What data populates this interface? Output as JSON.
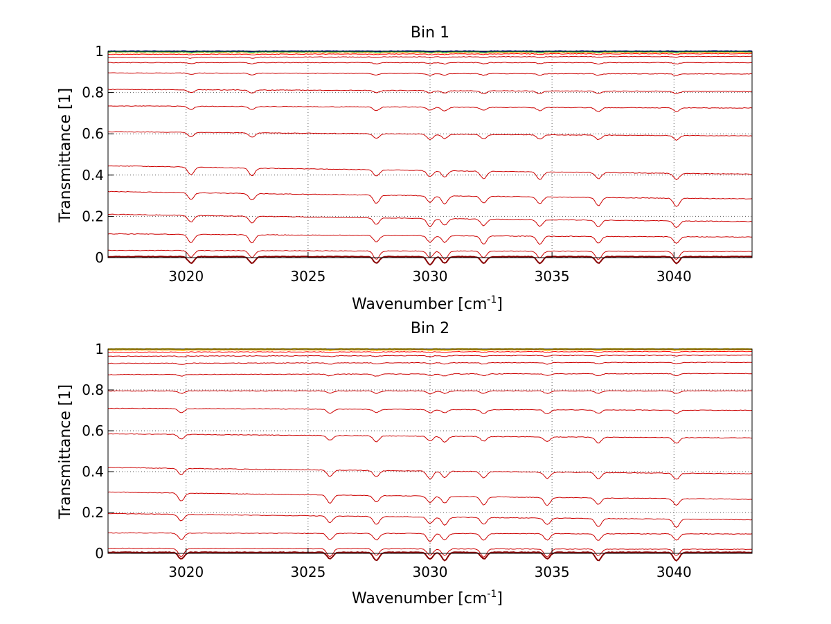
{
  "chart_data": [
    {
      "type": "line",
      "title": "Bin 1",
      "xlabel": "Wavenumber [cm",
      "xlabel_sup": "-1",
      "xlabel_end": "]",
      "ylabel": "Transmittance [1]",
      "xlim": [
        3016.8,
        3043.2
      ],
      "ylim": [
        0,
        1
      ],
      "xticks": [
        3020,
        3025,
        3030,
        3035,
        3040
      ],
      "xtick_labels": [
        "3020",
        "3025",
        "3030",
        "3035",
        "3040"
      ],
      "yticks": [
        0,
        0.2,
        0.4,
        0.6,
        0.8,
        1
      ],
      "ytick_labels": [
        "0",
        "0.2",
        "0.4",
        "0.6",
        "0.8",
        "1"
      ],
      "grid": true,
      "series": [
        {
          "color": "#0000aa",
          "values_at": [
            [
              3017,
              1.0
            ],
            [
              3043,
              1.0
            ]
          ]
        },
        {
          "color": "#00aa66",
          "values_at": [
            [
              3017,
              0.997
            ],
            [
              3043,
              0.997
            ]
          ]
        },
        {
          "color": "#ffaa00",
          "values_at": [
            [
              3017,
              0.992
            ],
            [
              3043,
              0.994
            ]
          ]
        },
        {
          "color": "#ff0000",
          "values_at": [
            [
              3017,
              0.985
            ],
            [
              3043,
              0.988
            ]
          ]
        },
        {
          "color": "#cc0000",
          "values_at": [
            [
              3017,
              0.97
            ],
            [
              3043,
              0.975
            ]
          ]
        },
        {
          "color": "#cc0000",
          "values_at": [
            [
              3017,
              0.945
            ],
            [
              3043,
              0.945
            ]
          ]
        },
        {
          "color": "#cc0000",
          "values_at": [
            [
              3017,
              0.895
            ],
            [
              3043,
              0.89
            ]
          ]
        },
        {
          "color": "#cc0000",
          "values_at": [
            [
              3017,
              0.815
            ],
            [
              3043,
              0.805
            ]
          ]
        },
        {
          "color": "#cc0000",
          "values_at": [
            [
              3017,
              0.735
            ],
            [
              3043,
              0.725
            ]
          ]
        },
        {
          "color": "#cc0000",
          "values_at": [
            [
              3017,
              0.61
            ],
            [
              3043,
              0.59
            ]
          ]
        },
        {
          "color": "#cc0000",
          "values_at": [
            [
              3017,
              0.445
            ],
            [
              3043,
              0.405
            ]
          ]
        },
        {
          "color": "#cc0000",
          "values_at": [
            [
              3017,
              0.32
            ],
            [
              3043,
              0.285
            ]
          ]
        },
        {
          "color": "#cc0000",
          "values_at": [
            [
              3017,
              0.21
            ],
            [
              3043,
              0.175
            ]
          ]
        },
        {
          "color": "#cc0000",
          "values_at": [
            [
              3017,
              0.115
            ],
            [
              3043,
              0.1
            ]
          ]
        },
        {
          "color": "#cc0000",
          "values_at": [
            [
              3017,
              0.035
            ],
            [
              3043,
              0.03
            ]
          ]
        },
        {
          "color": "#880000",
          "values_at": [
            [
              3017,
              0.005
            ],
            [
              3043,
              0.005
            ]
          ]
        }
      ],
      "dips": [
        3020.2,
        3022.7,
        3027.8,
        3030.0,
        3030.6,
        3032.2,
        3034.5,
        3036.9,
        3040.1
      ]
    },
    {
      "type": "line",
      "title": "Bin 2",
      "xlabel": "Wavenumber [cm",
      "xlabel_sup": "-1",
      "xlabel_end": "]",
      "ylabel": "Transmittance [1]",
      "xlim": [
        3016.8,
        3043.2
      ],
      "ylim": [
        0,
        1
      ],
      "xticks": [
        3020,
        3025,
        3030,
        3035,
        3040
      ],
      "xtick_labels": [
        "3020",
        "3025",
        "3030",
        "3035",
        "3040"
      ],
      "yticks": [
        0,
        0.2,
        0.4,
        0.6,
        0.8,
        1
      ],
      "ytick_labels": [
        "0",
        "0.2",
        "0.4",
        "0.6",
        "0.8",
        "1"
      ],
      "grid": true,
      "series": [
        {
          "color": "#ffdd00",
          "values_at": [
            [
              3017,
              1.0
            ],
            [
              3043,
              1.0
            ]
          ]
        },
        {
          "color": "#ffaa00",
          "values_at": [
            [
              3017,
              0.995
            ],
            [
              3043,
              0.996
            ]
          ]
        },
        {
          "color": "#ff0000",
          "values_at": [
            [
              3017,
              0.985
            ],
            [
              3043,
              0.988
            ]
          ]
        },
        {
          "color": "#cc0000",
          "values_at": [
            [
              3017,
              0.965
            ],
            [
              3043,
              0.97
            ]
          ]
        },
        {
          "color": "#cc0000",
          "values_at": [
            [
              3017,
              0.93
            ],
            [
              3043,
              0.935
            ]
          ]
        },
        {
          "color": "#cc0000",
          "values_at": [
            [
              3017,
              0.875
            ],
            [
              3043,
              0.88
            ]
          ]
        },
        {
          "color": "#cc0000",
          "values_at": [
            [
              3017,
              0.795
            ],
            [
              3043,
              0.795
            ]
          ]
        },
        {
          "color": "#cc0000",
          "values_at": [
            [
              3017,
              0.71
            ],
            [
              3043,
              0.7
            ]
          ]
        },
        {
          "color": "#cc0000",
          "values_at": [
            [
              3017,
              0.585
            ],
            [
              3043,
              0.565
            ]
          ]
        },
        {
          "color": "#cc0000",
          "values_at": [
            [
              3017,
              0.42
            ],
            [
              3043,
              0.39
            ]
          ]
        },
        {
          "color": "#cc0000",
          "values_at": [
            [
              3017,
              0.3
            ],
            [
              3043,
              0.265
            ]
          ]
        },
        {
          "color": "#cc0000",
          "values_at": [
            [
              3017,
              0.195
            ],
            [
              3043,
              0.165
            ]
          ]
        },
        {
          "color": "#cc0000",
          "values_at": [
            [
              3017,
              0.1
            ],
            [
              3043,
              0.095
            ]
          ]
        },
        {
          "color": "#cc0000",
          "values_at": [
            [
              3017,
              0.025
            ],
            [
              3043,
              0.02
            ]
          ]
        },
        {
          "color": "#880000",
          "values_at": [
            [
              3017,
              0.005
            ],
            [
              3043,
              0.005
            ]
          ]
        }
      ],
      "dips": [
        3019.8,
        3025.9,
        3027.8,
        3030.0,
        3030.6,
        3032.2,
        3034.8,
        3036.9,
        3040.1
      ]
    }
  ]
}
